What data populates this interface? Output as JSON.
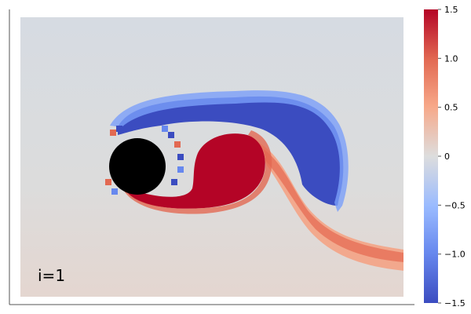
{
  "chart_data": {
    "type": "heatmap",
    "title": "",
    "xlabel": "",
    "ylabel": "",
    "annotation": "i=1",
    "colormap": "coolwarm",
    "colorbar": {
      "range": [
        -1.5,
        1.5
      ],
      "ticks": [
        -1.5,
        -1.0,
        -0.5,
        0,
        0.5,
        1.0,
        1.5
      ],
      "tick_labels": [
        "−1.5",
        "−1.0",
        "−0.5",
        "0",
        "0.5",
        "1.0",
        "1.5"
      ]
    },
    "grid": false,
    "obstacle": {
      "shape": "circle",
      "color": "#000000",
      "center": [
        0.17,
        0.54
      ],
      "radius": 0.1
    },
    "field": {
      "description_levels": {
        "background_top": -0.15,
        "background_bottom": 0.1
      },
      "features": [
        {
          "name": "upper-shear-layer",
          "value": -1.5
        },
        {
          "name": "lower-shear-layer",
          "value": 1.5
        },
        {
          "name": "wake-vortex",
          "value": 1.5
        },
        {
          "name": "trailing-sheet",
          "value": 0.5
        }
      ]
    }
  },
  "colors": {
    "cold": "#3b4cc0",
    "neutral": "#dddddd",
    "hot": "#b40426",
    "axis": "#555555"
  }
}
